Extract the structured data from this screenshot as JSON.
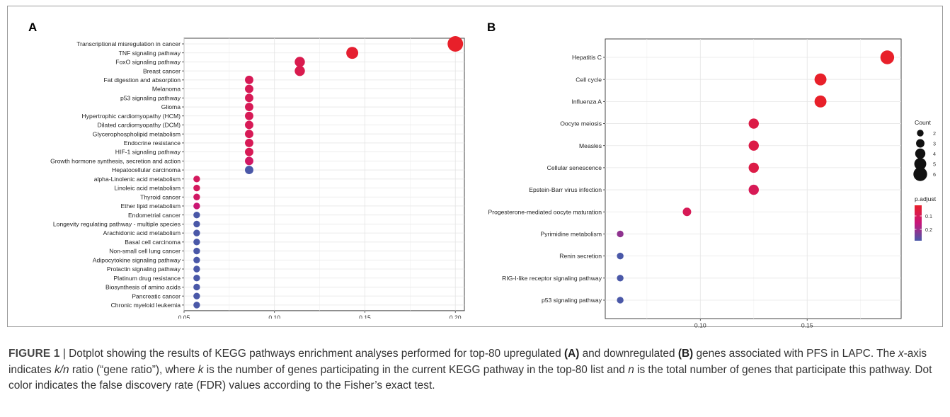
{
  "panel_a_label": "A",
  "panel_b_label": "B",
  "legend": {
    "count_title": "Count",
    "count_ticks": [
      "2",
      "3",
      "4",
      "5",
      "6"
    ],
    "padj_title": "p.adjust",
    "padj_ticks": [
      "0.1",
      "0.2"
    ],
    "colors": {
      "low": "#e8202a",
      "mid": "#c8157a",
      "high": "#4a58a8"
    }
  },
  "chart_data": [
    {
      "type": "scatter",
      "panel": "A",
      "xlabel": "",
      "ylabel": "",
      "xlim": [
        0.05,
        0.205
      ],
      "x_ticks": [
        "0.05",
        "0.10",
        "0.15",
        "0.20"
      ],
      "x_tick_values": [
        0.05,
        0.1,
        0.15,
        0.2
      ],
      "grid": true,
      "categories": [
        "Transcriptional misregulation in cancer",
        "TNF signaling pathway",
        "FoxO signaling pathway",
        "Breast cancer",
        "Fat digestion and absorption",
        "Melanoma",
        "p53 signaling pathway",
        "Glioma",
        "Hypertrophic cardiomyopathy (HCM)",
        "Dilated cardiomyopathy (DCM)",
        "Glycerophospholipid metabolism",
        "Endocrine resistance",
        "HIF-1 signaling pathway",
        "Growth hormone synthesis, secretion and action",
        "Hepatocellular carcinoma",
        "alpha-Linolenic acid metabolism",
        "Linoleic acid metabolism",
        "Thyroid cancer",
        "Ether lipid metabolism",
        "Endometrial cancer",
        "Longevity regulating pathway - multiple species",
        "Arachidonic acid metabolism",
        "Basal cell carcinoma",
        "Non-small cell lung cancer",
        "Adipocytokine signaling pathway",
        "Prolactin signaling pathway",
        "Platinum drug resistance",
        "Biosynthesis of amino acids",
        "Pancreatic cancer",
        "Chronic myeloid leukemia"
      ],
      "x": [
        0.2,
        0.143,
        0.114,
        0.114,
        0.086,
        0.086,
        0.086,
        0.086,
        0.086,
        0.086,
        0.086,
        0.086,
        0.086,
        0.086,
        0.086,
        0.057,
        0.057,
        0.057,
        0.057,
        0.057,
        0.057,
        0.057,
        0.057,
        0.057,
        0.057,
        0.057,
        0.057,
        0.057,
        0.057,
        0.057
      ],
      "count": [
        7,
        5,
        4,
        4,
        3,
        3,
        3,
        3,
        3,
        3,
        3,
        3,
        3,
        3,
        3,
        2,
        2,
        2,
        2,
        2,
        2,
        2,
        2,
        2,
        2,
        2,
        2,
        2,
        2,
        2
      ],
      "p_adjust": [
        0.02,
        0.03,
        0.07,
        0.07,
        0.08,
        0.08,
        0.08,
        0.08,
        0.08,
        0.08,
        0.08,
        0.08,
        0.08,
        0.1,
        0.24,
        0.09,
        0.09,
        0.1,
        0.12,
        0.24,
        0.24,
        0.24,
        0.24,
        0.24,
        0.24,
        0.24,
        0.24,
        0.24,
        0.24,
        0.24
      ]
    },
    {
      "type": "scatter",
      "panel": "B",
      "xlabel": "",
      "ylabel": "",
      "xlim": [
        0.0555,
        0.194
      ],
      "x_ticks": [
        "0.10",
        "0.15"
      ],
      "x_tick_values": [
        0.1,
        0.15
      ],
      "grid": true,
      "categories": [
        "Hepatitis C",
        "Cell cycle",
        "Influenza A",
        "Oocyte meiosis",
        "Measles",
        "Cellular senescence",
        "Epstein-Barr virus infection",
        "Progesterone-mediated oocyte maturation",
        "Pyrimidine metabolism",
        "Renin secretion",
        "RIG-I-like receptor signaling pathway",
        "p53 signaling pathway"
      ],
      "x": [
        0.1875,
        0.15625,
        0.15625,
        0.125,
        0.125,
        0.125,
        0.125,
        0.09375,
        0.0625,
        0.0625,
        0.0625,
        0.0625
      ],
      "count": [
        6,
        5,
        5,
        4,
        4,
        4,
        4,
        3,
        2,
        2,
        2,
        2
      ],
      "p_adjust": [
        0.02,
        0.02,
        0.02,
        0.06,
        0.06,
        0.06,
        0.08,
        0.08,
        0.18,
        0.24,
        0.24,
        0.24
      ]
    }
  ],
  "caption": {
    "label": "FIGURE 1",
    "separator": " | ",
    "part1": "Dotplot showing the results of KEGG pathways enrichment analyses performed for top-80 upregulated ",
    "bold_a": "(A)",
    "part2": " and downregulated ",
    "bold_b": "(B)",
    "part3": " genes associated with PFS in LAPC. The ",
    "italic_x": "x",
    "part4": "-axis indicates ",
    "italic_kn": "k/n",
    "part5": " ratio (“gene ratio”), where ",
    "italic_k": "k",
    "part6": " is the number of genes participating in the current KEGG pathway in the top-80 list and ",
    "italic_n": "n",
    "part7": " is the total number of genes that participate this pathway. Dot color indicates the false discovery rate (FDR) values according to the Fisher’s exact test."
  }
}
